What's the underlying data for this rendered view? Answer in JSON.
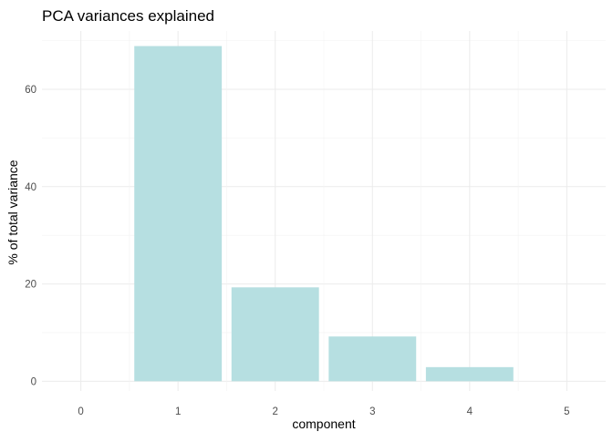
{
  "chart_data": {
    "type": "bar",
    "title": "PCA variances explained",
    "xlabel": "component",
    "ylabel": "% of total variance",
    "x_ticks": [
      "0",
      "1",
      "2",
      "3",
      "4",
      "5"
    ],
    "y_ticks": [
      "0",
      "20",
      "40",
      "60"
    ],
    "xlim": [
      -0.4,
      5.4
    ],
    "ylim": [
      -2,
      72
    ],
    "grid": true,
    "bar_color": "#b6dfe1",
    "categories": [
      "1",
      "2",
      "3",
      "4"
    ],
    "x": [
      1,
      2,
      3,
      4
    ],
    "values": [
      68.9,
      19.3,
      9.2,
      2.9
    ]
  }
}
